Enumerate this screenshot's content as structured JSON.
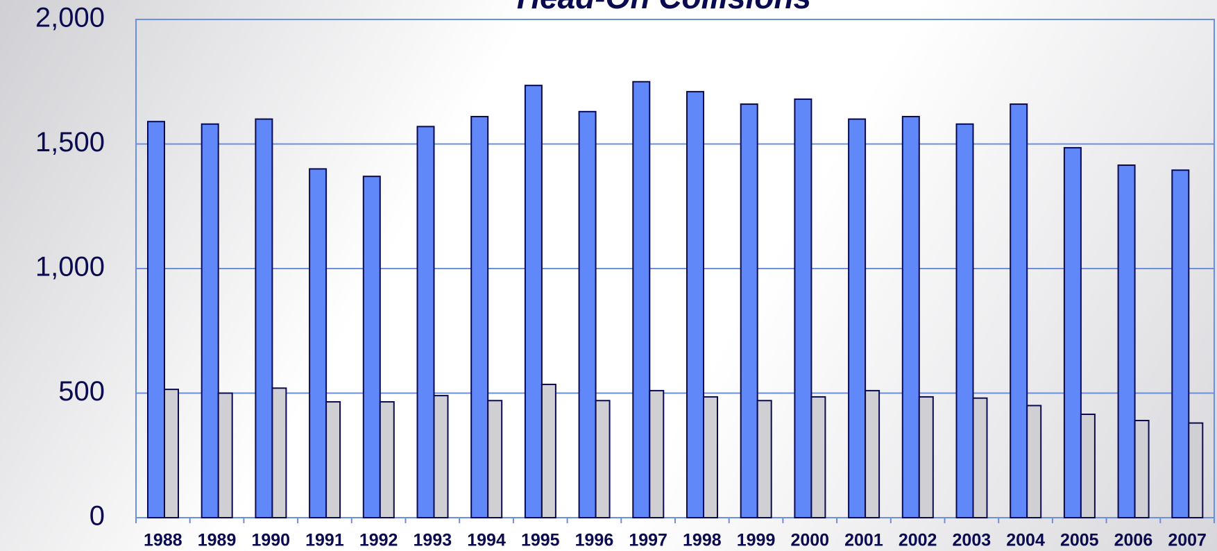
{
  "chart_data": {
    "type": "bar",
    "title": "Head-On Collisions",
    "categories": [
      "1988",
      "1989",
      "1990",
      "1991",
      "1992",
      "1993",
      "1994",
      "1995",
      "1996",
      "1997",
      "1998",
      "1999",
      "2000",
      "2001",
      "2002",
      "2003",
      "2004",
      "2005",
      "2006",
      "2007"
    ],
    "series": [
      {
        "color": "#6088f8",
        "values": [
          1590,
          1580,
          1600,
          1400,
          1370,
          1570,
          1610,
          1735,
          1630,
          1750,
          1710,
          1660,
          1680,
          1600,
          1610,
          1580,
          1660,
          1485,
          1415,
          1395
        ]
      },
      {
        "color": "#d0d0d4",
        "values": [
          515,
          500,
          520,
          465,
          465,
          490,
          470,
          535,
          470,
          510,
          485,
          470,
          485,
          510,
          485,
          480,
          450,
          415,
          390,
          380
        ]
      }
    ],
    "ylim": [
      0,
      2000
    ],
    "yticks": [
      0,
      500,
      {
        "value": 1000,
        "label": "1,000"
      },
      {
        "value": 1500,
        "label": "1,500"
      },
      {
        "value": 2000,
        "label": "2,000"
      }
    ],
    "grid": true
  }
}
